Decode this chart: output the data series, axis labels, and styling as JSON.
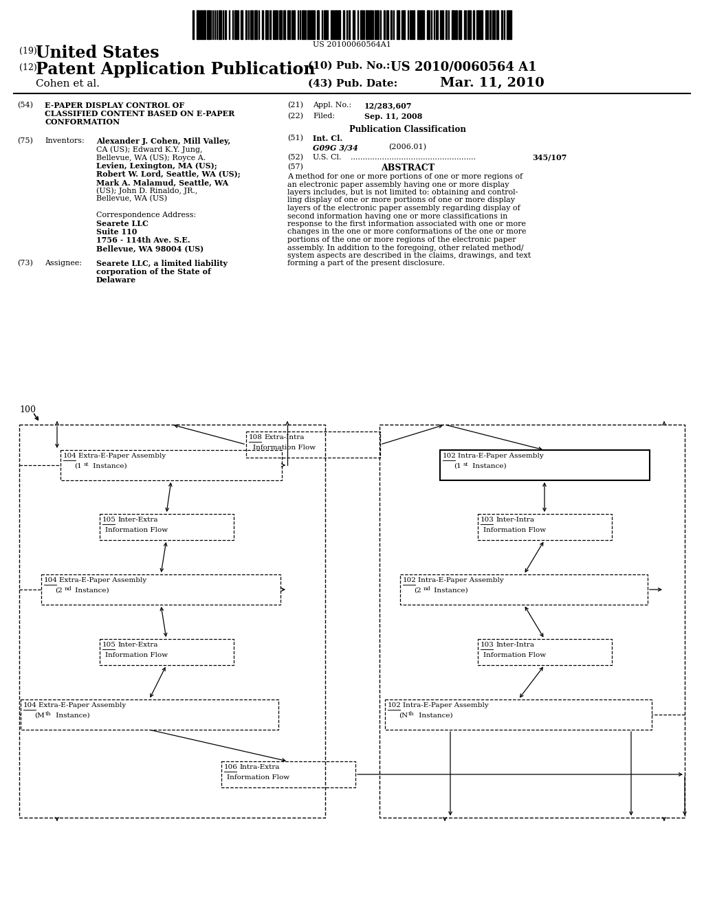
{
  "bg_color": "#ffffff",
  "barcode_text": "US 20100060564A1",
  "title_19": "(19)",
  "title_us": "United States",
  "title_12": "(12)",
  "title_patent": "Patent Application Publication",
  "title_10": "(10) Pub. No.:",
  "title_10b": "US 2010/0060564 A1",
  "cohen": "Cohen et al.",
  "pub_date_label": "(43) Pub. Date:",
  "pub_date_value": "Mar. 11, 2010",
  "field54_label": "(54)",
  "field54_line1": "E-PAPER DISPLAY CONTROL OF",
  "field54_line2": "CLASSIFIED CONTENT BASED ON E-PAPER",
  "field54_line3": "CONFORMATION",
  "field21_label": "(21)",
  "field21_key": "Appl. No.:",
  "field21_value": "12/283,607",
  "field22_label": "(22)",
  "field22_key": "Filed:",
  "field22_value": "Sep. 11, 2008",
  "field75_label": "(75)",
  "field75_key": "Inventors:",
  "field75_inventors": [
    "Alexander J. Cohen, Mill Valley,",
    "CA (US); Edward K.Y. Jung,",
    "Bellevue, WA (US); Royce A.",
    "Levien, Lexington, MA (US);",
    "Robert W. Lord, Seattle, WA (US);",
    "Mark A. Malamud, Seattle, WA",
    "(US); John D. Rinaldo, JR.,",
    "Bellevue, WA (US)"
  ],
  "field75_bold_names": [
    "Alexander J. Cohen",
    "Edward K.Y. Jung",
    "Royce A.",
    "Levien",
    "Robert W. Lord",
    "Mark A. Malamud",
    "John D. Rinaldo, JR."
  ],
  "pub_class_header": "Publication Classification",
  "field51_label": "(51)",
  "field51_key": "Int. Cl.",
  "field51_class": "G09G 3/34",
  "field51_year": "(2006.01)",
  "field52_label": "(52)",
  "field52_key": "U.S. Cl.",
  "field52_value": "345/107",
  "field57_label": "(57)",
  "field57_key": "ABSTRACT",
  "abstract_lines": [
    "A method for one or more portions of one or more regions of",
    "an electronic paper assembly having one or more display",
    "layers includes, but is not limited to: obtaining and control-",
    "ling display of one or more portions of one or more display",
    "layers of the electronic paper assembly regarding display of",
    "second information having one or more classifications in",
    "response to the first information associated with one or more",
    "changes in the one or more conformations of the one or more",
    "portions of the one or more regions of the electronic paper",
    "assembly. In addition to the foregoing, other related method/",
    "system aspects are described in the claims, drawings, and text",
    "forming a part of the present disclosure."
  ],
  "corr_label": "Correspondence Address:",
  "corr_name": "Searete LLC",
  "corr_suite": "Suite 110",
  "corr_addr": "1756 - 114th Ave. S.E.",
  "corr_city": "Bellevue, WA 98004 (US)",
  "field73_label": "(73)",
  "field73_key": "Assignee:",
  "field73_value_lines": [
    "Searete LLC, a limited liability",
    "corporation of the State of",
    "Delaware"
  ],
  "diagram_label": "100"
}
